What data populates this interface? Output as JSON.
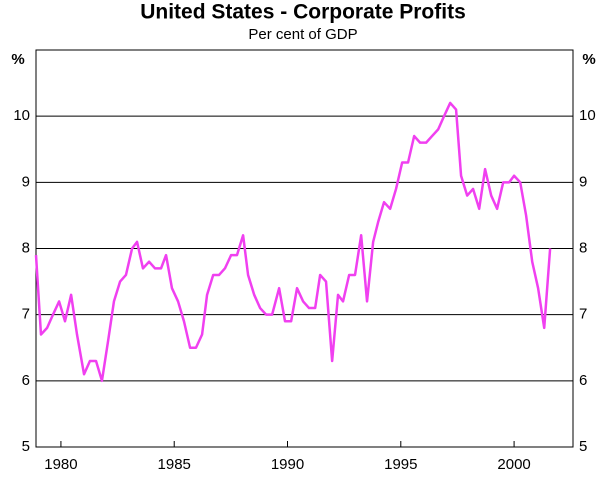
{
  "chart_data": {
    "type": "line",
    "title": "United States -  Corporate Profits",
    "subtitle": "Per cent of GDP",
    "y_unit": "%",
    "x": [
      1978.9,
      1979.12,
      1979.39,
      1979.65,
      1979.92,
      1980.18,
      1980.45,
      1980.71,
      1981.02,
      1981.28,
      1981.55,
      1981.81,
      1982.08,
      1982.34,
      1982.61,
      1982.87,
      1983.14,
      1983.36,
      1983.62,
      1983.89,
      1984.15,
      1984.42,
      1984.64,
      1984.9,
      1985.17,
      1985.43,
      1985.7,
      1985.96,
      1986.23,
      1986.45,
      1986.72,
      1986.98,
      1987.24,
      1987.51,
      1987.77,
      1988.04,
      1988.26,
      1988.53,
      1988.79,
      1989.06,
      1989.32,
      1989.63,
      1989.89,
      1990.16,
      1990.42,
      1990.69,
      1990.95,
      1991.22,
      1991.44,
      1991.7,
      1991.97,
      1992.23,
      1992.45,
      1992.72,
      1992.98,
      1993.25,
      1993.51,
      1993.78,
      1994.0,
      1994.26,
      1994.53,
      1994.79,
      1995.06,
      1995.32,
      1995.59,
      1995.85,
      1996.12,
      1996.38,
      1996.65,
      1996.91,
      1997.18,
      1997.44,
      1997.66,
      1997.93,
      1998.19,
      1998.46,
      1998.72,
      1998.99,
      1999.25,
      1999.52,
      1999.78,
      2000.0,
      2000.27,
      2000.53,
      2000.8,
      2001.06,
      2001.33,
      2001.59
    ],
    "series": [
      {
        "name": "Corporate profits",
        "color": "#f040f0",
        "values": [
          7.9,
          6.7,
          6.8,
          7.0,
          7.2,
          6.9,
          7.3,
          6.7,
          6.1,
          6.3,
          6.3,
          6.0,
          6.6,
          7.2,
          7.5,
          7.6,
          8.0,
          8.1,
          7.7,
          7.8,
          7.7,
          7.7,
          7.9,
          7.4,
          7.2,
          6.9,
          6.5,
          6.5,
          6.7,
          7.3,
          7.6,
          7.6,
          7.7,
          7.9,
          7.9,
          8.2,
          7.6,
          7.3,
          7.1,
          7.0,
          7.0,
          7.4,
          6.9,
          6.9,
          7.4,
          7.2,
          7.1,
          7.1,
          7.6,
          7.5,
          6.3,
          7.3,
          7.2,
          7.6,
          7.6,
          8.2,
          7.2,
          8.1,
          8.4,
          8.7,
          8.6,
          8.9,
          9.3,
          9.3,
          9.7,
          9.6,
          9.6,
          9.7,
          9.8,
          10.0,
          10.2,
          10.1,
          9.1,
          8.8,
          8.9,
          8.6,
          9.2,
          8.8,
          8.6,
          9.0,
          9.0,
          9.1,
          9.0,
          8.5,
          7.8,
          7.4,
          6.8,
          8.0
        ]
      }
    ],
    "xlim": [
      1978.9,
      2002.6
    ],
    "xticks": [
      1980,
      1985,
      1990,
      1995,
      2000
    ],
    "ylim": [
      5,
      11
    ],
    "yticks": [
      5,
      6,
      7,
      8,
      9,
      10
    ],
    "grid": true
  }
}
